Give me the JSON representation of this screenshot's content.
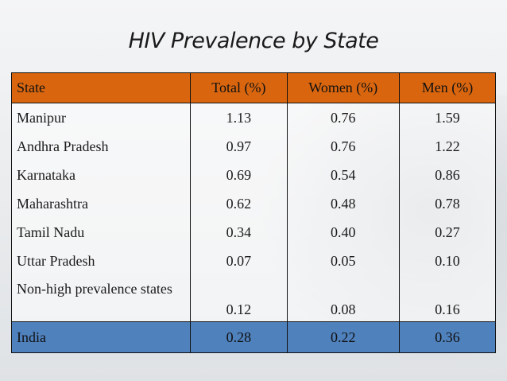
{
  "title": "HIV Prevalence by State",
  "chart_data": {
    "type": "table",
    "columns": [
      "State",
      "Total (%)",
      "Women (%)",
      "Men (%)"
    ],
    "rows": [
      {
        "state": "Manipur",
        "total": "1.13",
        "women": "0.76",
        "men": "1.59"
      },
      {
        "state": "Andhra Pradesh",
        "total": "0.97",
        "women": "0.76",
        "men": "1.22"
      },
      {
        "state": "Karnataka",
        "total": "0.69",
        "women": "0.54",
        "men": "0.86"
      },
      {
        "state": "Maharashtra",
        "total": "0.62",
        "women": "0.48",
        "men": "0.78"
      },
      {
        "state": "Tamil Nadu",
        "total": "0.34",
        "women": "0.40",
        "men": "0.27"
      },
      {
        "state": "Uttar Pradesh",
        "total": "0.07",
        "women": "0.05",
        "men": "0.10"
      },
      {
        "state": "Non-high prevalence states",
        "total": "0.12",
        "women": "0.08",
        "men": "0.16"
      }
    ],
    "summary": {
      "state": "India",
      "total": "0.28",
      "women": "0.22",
      "men": "0.36"
    },
    "colors": {
      "header": "#d9660f",
      "summary": "#4f81bd"
    }
  }
}
